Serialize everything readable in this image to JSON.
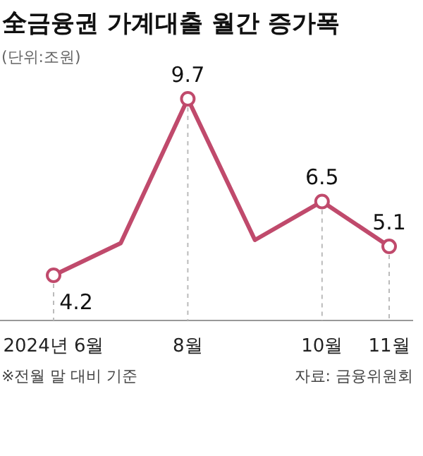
{
  "chart_data": {
    "type": "line",
    "title": "全금융권 가계대출 월간 증가폭",
    "subtitle": "(단위:조원)",
    "categories": [
      "2024년 6월",
      null,
      "8월",
      null,
      "10월",
      "11월"
    ],
    "series": [
      {
        "color": "#c04a6c",
        "values": [
          4.2,
          5.2,
          9.7,
          5.3,
          6.5,
          5.1
        ],
        "value_labels": [
          "4.2",
          null,
          "9.7",
          null,
          "6.5",
          "5.1"
        ]
      }
    ],
    "marker": "circle",
    "line_style": "solid",
    "grid": "x",
    "annotations": [
      "※전월 말 대비 기준",
      "자료: 금융위원회"
    ]
  }
}
